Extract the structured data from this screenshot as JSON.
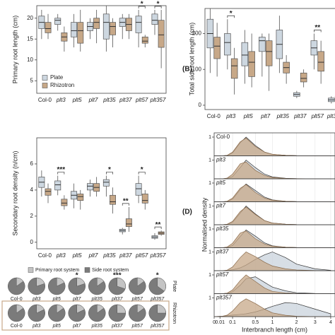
{
  "chart_data": [
    {
      "type": "box",
      "ylabel": "Primary root length (cm)",
      "categories": [
        "Col-0",
        "plt3",
        "plt5",
        "plt7",
        "plt35",
        "plt37",
        "plt57",
        "plt357"
      ],
      "series": [
        {
          "name": "Plate",
          "color": "#cdd7e0",
          "values": [
            [
              15,
              17.5,
              19,
              20.5,
              22
            ],
            [
              17,
              18.5,
              19.5,
              20,
              21
            ],
            [
              13,
              15.5,
              17,
              19,
              21
            ],
            [
              15,
              17,
              18,
              19,
              20
            ],
            [
              12,
              15,
              19,
              21,
              23
            ],
            [
              15,
              18,
              19,
              20,
              21
            ],
            [
              13,
              16.5,
              19,
              20.5,
              22
            ],
            [
              16,
              18.5,
              19.5,
              21,
              22
            ]
          ]
        },
        {
          "name": "Rhizotron",
          "color": "#c7a888",
          "values": [
            [
              15,
              16.5,
              17.5,
              19,
              21
            ],
            [
              12,
              14.5,
              15.5,
              16.5,
              18
            ],
            [
              12,
              14,
              17,
              19,
              22
            ],
            [
              14,
              17.5,
              19,
              20,
              22
            ],
            [
              13,
              16,
              18,
              19,
              20
            ],
            [
              15,
              17,
              18.5,
              20,
              21
            ],
            [
              13,
              14,
              14.5,
              15.5,
              16
            ],
            [
              8,
              13,
              16,
              19.5,
              22
            ]
          ]
        }
      ],
      "ylim": [
        2,
        23
      ],
      "yticks": [
        5,
        10,
        15,
        20
      ],
      "significance": [
        null,
        null,
        null,
        null,
        null,
        null,
        "*",
        "*"
      ],
      "legend": "bottom-left"
    },
    {
      "type": "box",
      "ylabel": "Total side root length (cm)",
      "panel_label": "(B)",
      "categories": [
        "Col-0",
        "plt3",
        "plt5",
        "plt7",
        "plt35",
        "plt37",
        "plt57",
        "plt357"
      ],
      "series": [
        {
          "color": "#cdd7e0",
          "values": [
            [
              90,
              160,
              200,
              240,
              270
            ],
            [
              100,
              140,
              175,
              200,
              240
            ],
            [
              60,
              110,
              140,
              175,
              210
            ],
            [
              80,
              150,
              180,
              190,
              200
            ],
            [
              90,
              130,
              170,
              210,
              250
            ],
            [
              20,
              25,
              30,
              35,
              40
            ],
            [
              100,
              140,
              160,
              180,
              200
            ],
            [
              5,
              10,
              15,
              20,
              25
            ]
          ]
        },
        {
          "color": "#c7a888",
          "values": [
            [
              80,
              130,
              165,
              190,
              230
            ],
            [
              30,
              75,
              110,
              130,
              160
            ],
            [
              50,
              80,
              120,
              150,
              200
            ],
            [
              40,
              110,
              150,
              180,
              200
            ],
            [
              60,
              90,
              105,
              120,
              140
            ],
            [
              50,
              65,
              75,
              90,
              100
            ],
            [
              60,
              95,
              120,
              150,
              180
            ],
            [
              10,
              15,
              20,
              25,
              30
            ]
          ]
        }
      ],
      "ylim": [
        -12,
        270
      ],
      "yticks": [
        0,
        100,
        200
      ],
      "significance": [
        null,
        "*",
        null,
        null,
        null,
        null,
        "**",
        null
      ]
    },
    {
      "type": "box",
      "ylabel": "Secondary root density (n/cm)",
      "categories": [
        "Col-0",
        "plt3",
        "plt5",
        "plt7",
        "plt35",
        "plt37",
        "plt57",
        "plt357"
      ],
      "series": [
        {
          "color": "#cdd7e0",
          "values": [
            [
              3.5,
              4.2,
              4.6,
              5,
              5.5
            ],
            [
              3.6,
              4,
              4.4,
              4.7,
              5.1
            ],
            [
              2.6,
              3.3,
              3.6,
              3.9,
              4.5
            ],
            [
              3.5,
              4,
              4.3,
              4.5,
              4.8
            ],
            [
              3.5,
              4.3,
              4.6,
              4.8,
              5.1
            ],
            [
              0.6,
              0.8,
              0.9,
              1,
              1.1
            ],
            [
              3,
              3.6,
              4.1,
              4.5,
              5.1
            ],
            [
              0.2,
              0.3,
              0.4,
              0.5,
              0.7
            ]
          ]
        },
        {
          "color": "#c7a888",
          "values": [
            [
              3,
              3.6,
              3.9,
              4.1,
              4.5
            ],
            [
              2.5,
              2.8,
              3,
              3.3,
              3.6
            ],
            [
              2.5,
              3.2,
              3.5,
              3.7,
              4
            ],
            [
              3.5,
              3.9,
              4.2,
              4.5,
              5
            ],
            [
              2.2,
              2.9,
              3.1,
              3.6,
              4.2
            ],
            [
              0.8,
              1.2,
              1.4,
              1.8,
              2.7
            ],
            [
              2.5,
              3,
              3.2,
              3.7,
              4
            ],
            [
              0.5,
              0.6,
              0.7,
              0.8,
              0.9
            ]
          ]
        }
      ],
      "ylim": [
        -0.5,
        8
      ],
      "yticks": [
        0,
        2,
        4,
        6
      ],
      "significance": [
        null,
        "***",
        null,
        null,
        "*",
        "**",
        "*",
        "**"
      ]
    },
    {
      "type": "density",
      "panel_label": "(D)",
      "ylabel": "Normalised density",
      "xlabel": "Interbranch length (cm)",
      "xscale": "sqrt",
      "xlim": [
        0,
        4.3
      ],
      "xticks": [
        0,
        0.01,
        0.1,
        0.5,
        1,
        2,
        3,
        4
      ],
      "ylim": [
        0,
        1.15
      ],
      "yticks": [
        1
      ],
      "grid": true,
      "x": [
        0,
        0.02,
        0.05,
        0.1,
        0.2,
        0.3,
        0.5,
        0.75,
        1,
        1.5,
        2,
        3,
        4
      ],
      "panels": [
        {
          "name": "Col-0",
          "series": [
            {
              "color": "#c9d3dc",
              "values": [
                0,
                0,
                0.02,
                0.15,
                0.7,
                1,
                0.55,
                0.2,
                0.08,
                0.03,
                0.01,
                0,
                0
              ]
            },
            {
              "color": "#c7a888",
              "values": [
                0,
                0,
                0.03,
                0.2,
                0.75,
                0.95,
                0.5,
                0.2,
                0.08,
                0.03,
                0.01,
                0,
                0
              ]
            }
          ]
        },
        {
          "name": "plt3",
          "series": [
            {
              "color": "#c9d3dc",
              "values": [
                0,
                0,
                0.02,
                0.12,
                0.6,
                1,
                0.6,
                0.25,
                0.1,
                0.03,
                0.01,
                0,
                0
              ]
            },
            {
              "color": "#c7a888",
              "values": [
                0,
                0,
                0.04,
                0.25,
                0.8,
                0.9,
                0.45,
                0.18,
                0.07,
                0.02,
                0.01,
                0,
                0
              ]
            }
          ]
        },
        {
          "name": "plt5",
          "series": [
            {
              "color": "#c9d3dc",
              "values": [
                0,
                0,
                0.02,
                0.14,
                0.65,
                0.95,
                0.6,
                0.25,
                0.1,
                0.03,
                0.01,
                0,
                0
              ]
            },
            {
              "color": "#c7a888",
              "values": [
                0,
                0,
                0.03,
                0.2,
                0.72,
                0.92,
                0.5,
                0.2,
                0.08,
                0.03,
                0.01,
                0,
                0
              ]
            }
          ]
        },
        {
          "name": "plt7",
          "series": [
            {
              "color": "#c9d3dc",
              "values": [
                0,
                0,
                0.02,
                0.13,
                0.62,
                1,
                0.58,
                0.22,
                0.09,
                0.03,
                0.01,
                0,
                0
              ]
            },
            {
              "color": "#c7a888",
              "values": [
                0,
                0,
                0.03,
                0.18,
                0.7,
                0.95,
                0.55,
                0.22,
                0.09,
                0.03,
                0.01,
                0,
                0
              ]
            }
          ]
        },
        {
          "name": "plt35",
          "series": [
            {
              "color": "#c9d3dc",
              "values": [
                0,
                0,
                0.02,
                0.12,
                0.6,
                0.95,
                0.62,
                0.26,
                0.1,
                0.03,
                0.01,
                0,
                0
              ]
            },
            {
              "color": "#c7a888",
              "values": [
                0,
                0,
                0.04,
                0.24,
                0.78,
                0.9,
                0.48,
                0.2,
                0.08,
                0.03,
                0.01,
                0,
                0
              ]
            }
          ]
        },
        {
          "name": "plt37",
          "series": [
            {
              "color": "#c9d3dc",
              "values": [
                0,
                0,
                0.01,
                0.05,
                0.15,
                0.3,
                0.6,
                0.85,
                1,
                0.7,
                0.35,
                0.1,
                0.02
              ]
            },
            {
              "color": "#c7a888",
              "values": [
                0,
                0,
                0.03,
                0.2,
                0.7,
                1,
                0.75,
                0.45,
                0.25,
                0.1,
                0.04,
                0.01,
                0
              ]
            }
          ]
        },
        {
          "name": "plt57",
          "series": [
            {
              "color": "#c9d3dc",
              "values": [
                0,
                0,
                0.02,
                0.1,
                0.45,
                0.8,
                0.9,
                0.6,
                0.35,
                0.15,
                0.05,
                0.01,
                0
              ]
            },
            {
              "color": "#c7a888",
              "values": [
                0,
                0,
                0.03,
                0.2,
                0.7,
                1,
                0.65,
                0.3,
                0.12,
                0.04,
                0.01,
                0,
                0
              ]
            }
          ]
        },
        {
          "name": "plt357",
          "series": [
            {
              "color": "#c9d3dc",
              "values": [
                0,
                0.02,
                0.05,
                0.08,
                0.12,
                0.15,
                0.25,
                0.4,
                0.55,
                0.75,
                0.7,
                0.4,
                0.15
              ]
            },
            {
              "color": "#c7a888",
              "values": [
                0,
                0.02,
                0.08,
                0.3,
                0.75,
                0.95,
                0.7,
                0.4,
                0.2,
                0.07,
                0.02,
                0,
                0
              ]
            }
          ]
        }
      ]
    },
    {
      "type": "pie",
      "categories": [
        "Col-0",
        "plt3",
        "plt5",
        "plt7",
        "plt35",
        "plt37",
        "plt57",
        "plt357"
      ],
      "wedges": [
        {
          "name": "Primary root system",
          "color": "#c4c4c4"
        },
        {
          "name": "Side root system",
          "color": "#7b7b7b"
        }
      ],
      "series": [
        {
          "name": "Plate",
          "values": [
            15,
            20,
            18,
            20,
            15,
            30,
            15,
            35
          ]
        },
        {
          "name": "Rhizotron",
          "values": [
            15,
            18,
            15,
            18,
            15,
            25,
            15,
            25
          ]
        }
      ],
      "significance": [
        null,
        null,
        null,
        "*",
        null,
        "***",
        null,
        "*"
      ]
    }
  ]
}
